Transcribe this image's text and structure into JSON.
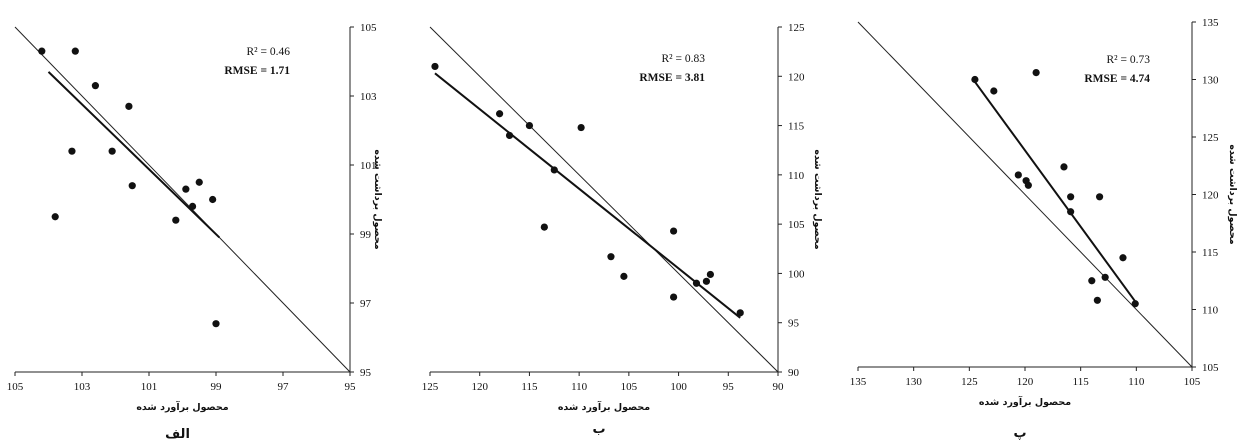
{
  "chart_data": [
    {
      "type": "scatter",
      "panel_label": "الف",
      "xlabel": "محصول برآورد شده",
      "ylabel": "محصول برداشت شده",
      "x_axis": {
        "min": 95,
        "max": 105,
        "reversed": true,
        "ticks": [
          "105",
          "103",
          "101",
          "99",
          "97",
          "95"
        ]
      },
      "y_axis": {
        "min": 95,
        "max": 105,
        "side": "right",
        "ticks": [
          "95",
          "97",
          "99",
          "101",
          "103",
          "105"
        ]
      },
      "annotation": {
        "r2": "R² = 0.46",
        "rmse": "RMSE = 1.71"
      },
      "points": [
        {
          "x": 104.2,
          "y": 104.3
        },
        {
          "x": 103.2,
          "y": 104.3
        },
        {
          "x": 102.6,
          "y": 103.3
        },
        {
          "x": 101.6,
          "y": 102.7
        },
        {
          "x": 103.3,
          "y": 101.4
        },
        {
          "x": 102.1,
          "y": 101.4
        },
        {
          "x": 101.5,
          "y": 100.4
        },
        {
          "x": 99.9,
          "y": 100.3
        },
        {
          "x": 99.5,
          "y": 100.5
        },
        {
          "x": 99.1,
          "y": 100.0
        },
        {
          "x": 99.7,
          "y": 99.8
        },
        {
          "x": 100.2,
          "y": 99.4
        },
        {
          "x": 103.8,
          "y": 99.5
        },
        {
          "x": 99.0,
          "y": 96.4
        }
      ],
      "fit_line": [
        {
          "x": 104.0,
          "y": 103.7
        },
        {
          "x": 98.9,
          "y": 98.9
        }
      ],
      "one_to_one": true
    },
    {
      "type": "scatter",
      "panel_label": "ب",
      "xlabel": "محصول برآورد شده",
      "ylabel": "محصول برداشت شده",
      "x_axis": {
        "min": 90,
        "max": 125,
        "reversed": true,
        "ticks": [
          "125",
          "120",
          "115",
          "110",
          "105",
          "100",
          "95",
          "90"
        ]
      },
      "y_axis": {
        "min": 90,
        "max": 125,
        "side": "right",
        "ticks": [
          "90",
          "95",
          "100",
          "105",
          "110",
          "115",
          "120",
          "125"
        ]
      },
      "annotation": {
        "r2": "R² = 0.83",
        "rmse": "RMSE = 3.81"
      },
      "points": [
        {
          "x": 124.5,
          "y": 121.0
        },
        {
          "x": 118.0,
          "y": 116.2
        },
        {
          "x": 115.0,
          "y": 115.0
        },
        {
          "x": 117.0,
          "y": 114.0
        },
        {
          "x": 109.8,
          "y": 114.8
        },
        {
          "x": 112.5,
          "y": 110.5
        },
        {
          "x": 113.5,
          "y": 104.7
        },
        {
          "x": 100.5,
          "y": 104.3
        },
        {
          "x": 106.8,
          "y": 101.7
        },
        {
          "x": 105.5,
          "y": 99.7
        },
        {
          "x": 98.2,
          "y": 99.0
        },
        {
          "x": 97.2,
          "y": 99.2
        },
        {
          "x": 96.8,
          "y": 99.9
        },
        {
          "x": 100.5,
          "y": 97.6
        },
        {
          "x": 93.8,
          "y": 96.0
        }
      ],
      "fit_line": [
        {
          "x": 124.5,
          "y": 120.3
        },
        {
          "x": 93.8,
          "y": 95.5
        }
      ],
      "one_to_one": true
    },
    {
      "type": "scatter",
      "panel_label": "پ",
      "xlabel": "محصول برآورد شده",
      "ylabel": "محصول برداشت شده",
      "x_axis": {
        "min": 105,
        "max": 135,
        "reversed": true,
        "ticks": [
          "135",
          "130",
          "125",
          "120",
          "115",
          "110",
          "105"
        ]
      },
      "y_axis": {
        "min": 105,
        "max": 135,
        "side": "right",
        "ticks": [
          "105",
          "110",
          "115",
          "120",
          "125",
          "130",
          "135"
        ]
      },
      "annotation": {
        "r2": "R² = 0.73",
        "rmse": "RMSE = 4.74"
      },
      "points": [
        {
          "x": 124.5,
          "y": 130.0
        },
        {
          "x": 122.8,
          "y": 129.0
        },
        {
          "x": 119.0,
          "y": 130.6
        },
        {
          "x": 116.5,
          "y": 122.4
        },
        {
          "x": 120.6,
          "y": 121.7
        },
        {
          "x": 119.9,
          "y": 121.2
        },
        {
          "x": 119.7,
          "y": 120.8
        },
        {
          "x": 115.9,
          "y": 119.8
        },
        {
          "x": 113.3,
          "y": 119.8
        },
        {
          "x": 115.9,
          "y": 118.5
        },
        {
          "x": 111.2,
          "y": 114.5
        },
        {
          "x": 112.8,
          "y": 112.8
        },
        {
          "x": 114.0,
          "y": 112.5
        },
        {
          "x": 113.5,
          "y": 110.8
        },
        {
          "x": 110.1,
          "y": 110.5
        }
      ],
      "fit_line": [
        {
          "x": 124.5,
          "y": 129.8
        },
        {
          "x": 110.1,
          "y": 110.7
        }
      ],
      "one_to_one": true
    }
  ]
}
